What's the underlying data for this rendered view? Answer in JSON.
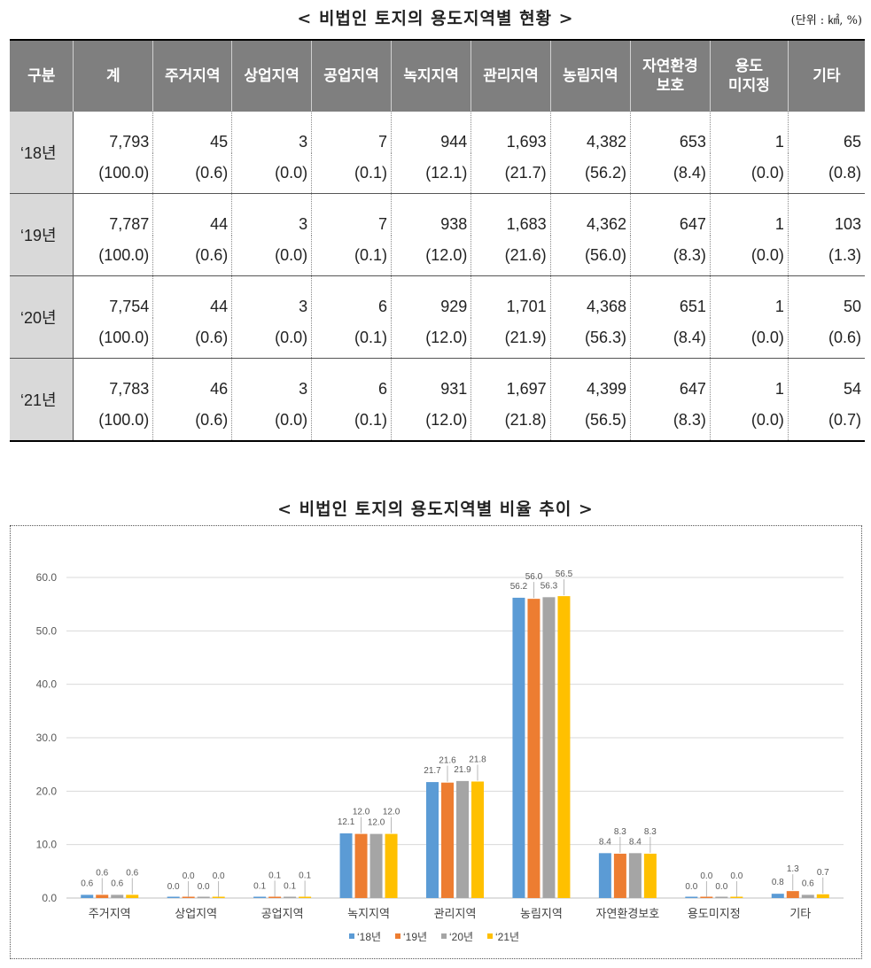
{
  "table": {
    "title": "< 비법인 토지의 용도지역별 현황 >",
    "unit": "(단위 : ㎢, %)",
    "headers": [
      "구분",
      "계",
      "주거지역",
      "상업지역",
      "공업지역",
      "녹지지역",
      "관리지역",
      "농림지역",
      "자연환경\n보호",
      "용도\n미지정",
      "기타"
    ],
    "rows": [
      {
        "label": "‘18년",
        "values": [
          "7,793",
          "45",
          "3",
          "7",
          "944",
          "1,693",
          "4,382",
          "653",
          "1",
          "65"
        ],
        "shares": [
          "(100.0)",
          "(0.6)",
          "(0.0)",
          "(0.1)",
          "(12.1)",
          "(21.7)",
          "(56.2)",
          "(8.4)",
          "(0.0)",
          "(0.8)"
        ]
      },
      {
        "label": "‘19년",
        "values": [
          "7,787",
          "44",
          "3",
          "7",
          "938",
          "1,683",
          "4,362",
          "647",
          "1",
          "103"
        ],
        "shares": [
          "(100.0)",
          "(0.6)",
          "(0.0)",
          "(0.1)",
          "(12.0)",
          "(21.6)",
          "(56.0)",
          "(8.3)",
          "(0.0)",
          "(1.3)"
        ]
      },
      {
        "label": "‘20년",
        "values": [
          "7,754",
          "44",
          "3",
          "6",
          "929",
          "1,701",
          "4,368",
          "651",
          "1",
          "50"
        ],
        "shares": [
          "(100.0)",
          "(0.6)",
          "(0.0)",
          "(0.1)",
          "(12.0)",
          "(21.9)",
          "(56.3)",
          "(8.4)",
          "(0.0)",
          "(0.6)"
        ]
      },
      {
        "label": "‘21년",
        "values": [
          "7,783",
          "46",
          "3",
          "6",
          "931",
          "1,697",
          "4,399",
          "647",
          "1",
          "54"
        ],
        "shares": [
          "(100.0)",
          "(0.6)",
          "(0.0)",
          "(0.1)",
          "(12.0)",
          "(21.8)",
          "(56.5)",
          "(8.3)",
          "(0.0)",
          "(0.7)"
        ]
      }
    ]
  },
  "chart_title": "< 비법인 토지의 용도지역별 비율 추이 >",
  "chart_data": {
    "type": "bar",
    "categories": [
      "주거지역",
      "상업지역",
      "공업지역",
      "녹지지역",
      "관리지역",
      "농림지역",
      "자연환경보호",
      "용도미지정",
      "기타"
    ],
    "series": [
      {
        "name": "‘18년",
        "color": "#5b9bd5",
        "values": [
          0.6,
          0.0,
          0.1,
          12.1,
          21.7,
          56.2,
          8.4,
          0.0,
          0.8
        ]
      },
      {
        "name": "‘19년",
        "color": "#ed7d31",
        "values": [
          0.6,
          0.0,
          0.1,
          12.0,
          21.6,
          56.0,
          8.3,
          0.0,
          1.3
        ]
      },
      {
        "name": "‘20년",
        "color": "#a5a5a5",
        "values": [
          0.6,
          0.0,
          0.1,
          12.0,
          21.9,
          56.3,
          8.4,
          0.0,
          0.6
        ]
      },
      {
        "name": "‘21년",
        "color": "#ffc000",
        "values": [
          0.6,
          0.0,
          0.1,
          12.0,
          21.8,
          56.5,
          8.3,
          0.0,
          0.7
        ]
      }
    ],
    "ylim": [
      0,
      60
    ],
    "yticks": [
      "0.0",
      "10.0",
      "20.0",
      "30.0",
      "40.0",
      "50.0",
      "60.0"
    ],
    "grid": true,
    "legend": "bottom"
  }
}
